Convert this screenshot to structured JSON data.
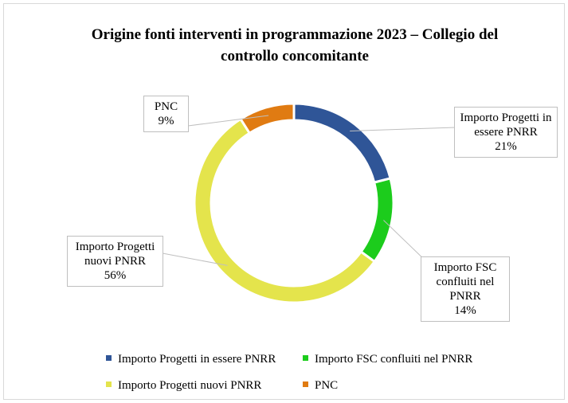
{
  "chart_data": {
    "type": "doughnut",
    "title": "Origine fonti interventi in programmazione 2023 – Collegio del controllo concomitante",
    "categories": [
      "Importo Progetti in essere PNRR",
      "Importo FSC confluiti nel PNRR",
      "Importo Progetti nuovi PNRR",
      "PNC"
    ],
    "values": [
      21,
      14,
      56,
      9
    ],
    "value_labels": [
      "21%",
      "14%",
      "56%",
      "9%"
    ],
    "colors": [
      "#2f5597",
      "#1ccc1c",
      "#e4e44c",
      "#e07b12"
    ],
    "legend": "bottom"
  }
}
